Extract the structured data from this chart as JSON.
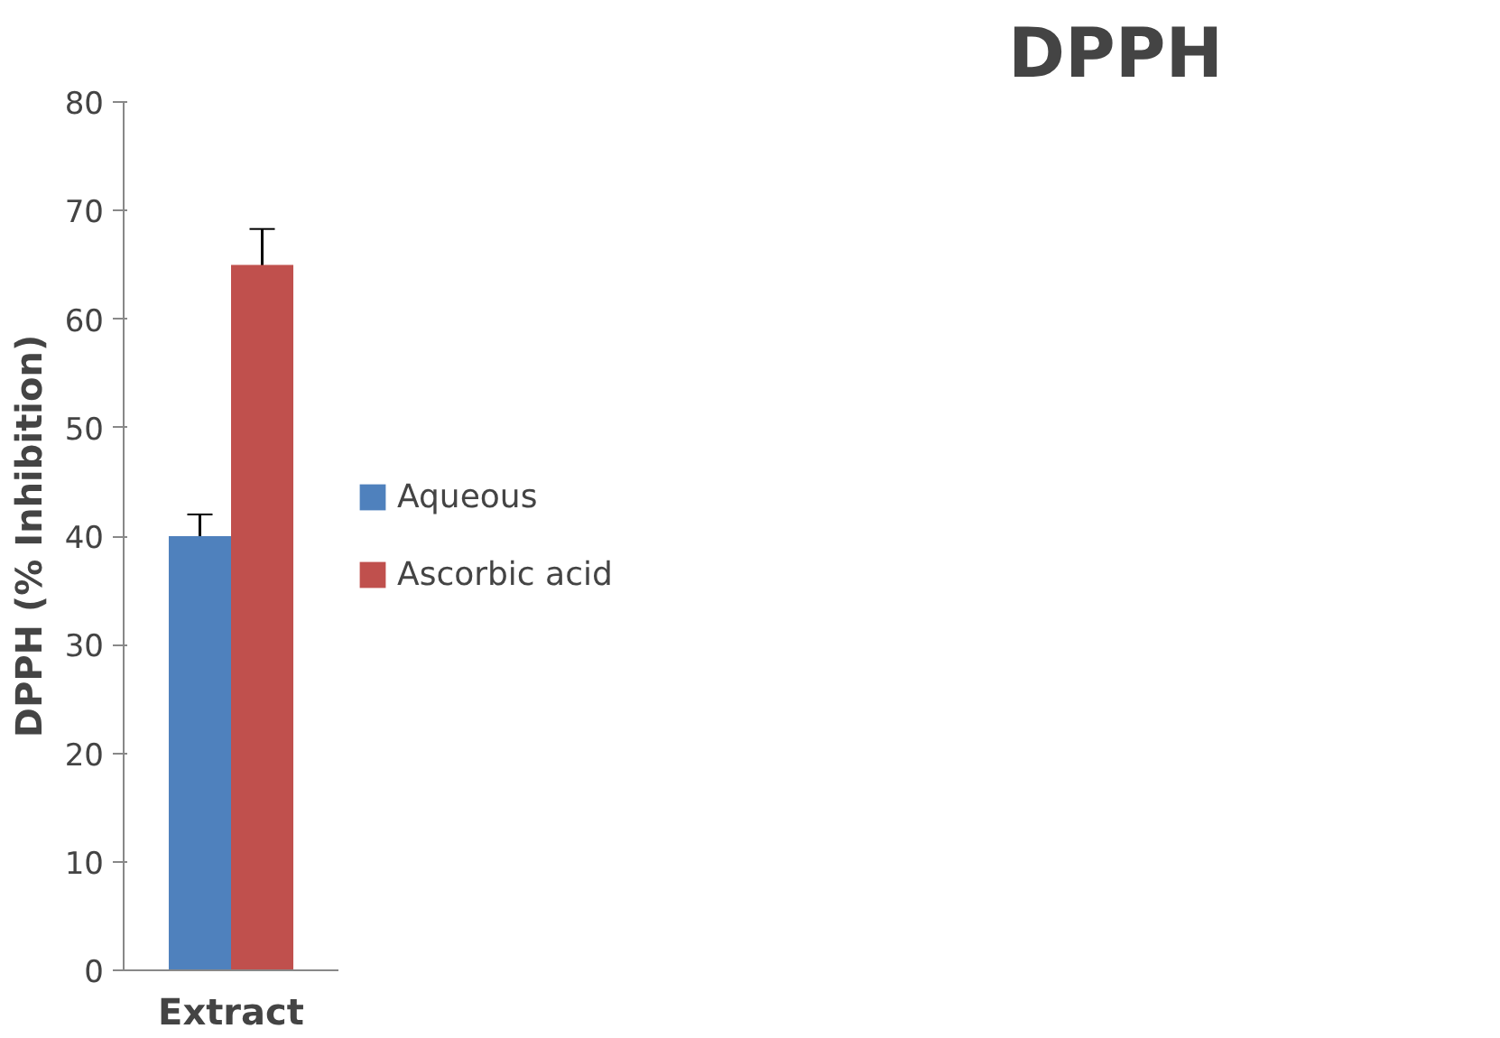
{
  "chart_data": {
    "type": "bar",
    "title": "DPPH",
    "ylabel": "DPPH (% Inhibition)",
    "categories": [
      "Extract"
    ],
    "series": [
      {
        "name": "Aqueous",
        "color": "#4f81bd",
        "values": [
          40
        ],
        "errors": [
          2
        ]
      },
      {
        "name": "Ascorbic acid",
        "color": "#c0504d",
        "values": [
          65
        ],
        "errors": [
          3.3
        ]
      }
    ],
    "ylim": [
      0,
      80
    ],
    "yticks": [
      0,
      10,
      20,
      30,
      40,
      50,
      60,
      70,
      80
    ],
    "grid": false,
    "legend": "right"
  }
}
